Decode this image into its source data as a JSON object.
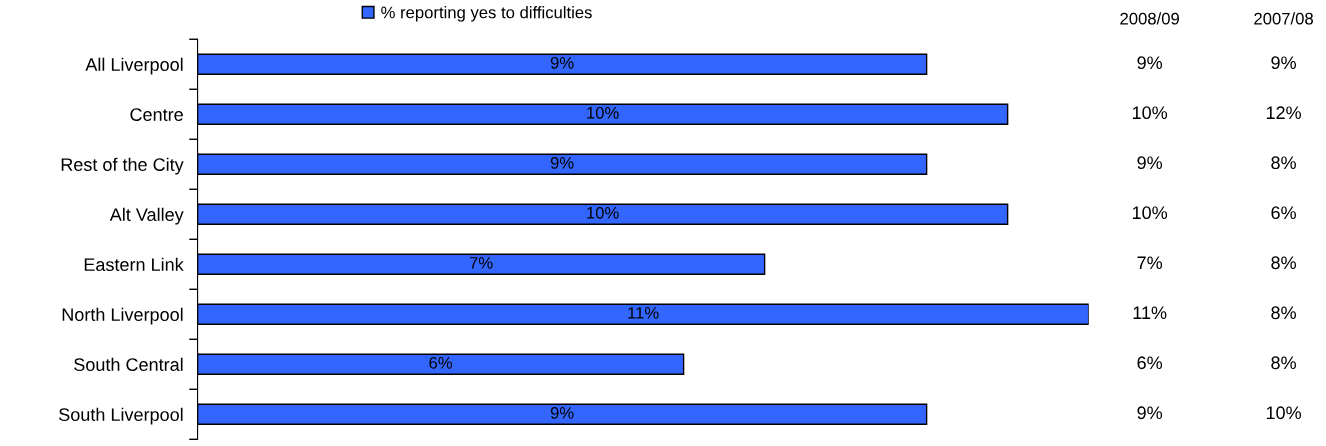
{
  "chart_data": {
    "type": "bar",
    "orientation": "horizontal",
    "categories": [
      "All Liverpool",
      "Centre",
      "Rest of the City",
      "Alt Valley",
      "Eastern Link",
      "North Liverpool",
      "South Central",
      "South Liverpool"
    ],
    "series": [
      {
        "name": "% reporting yes to difficulties",
        "color": "#3366ff",
        "values": [
          9,
          10,
          9,
          10,
          7,
          11,
          6,
          9
        ],
        "value_labels": [
          "9%",
          "10%",
          "9%",
          "10%",
          "7%",
          "11%",
          "6%",
          "9%"
        ]
      }
    ],
    "legend": "top",
    "grid": false,
    "tick_labels": "y",
    "annotations": [
      "2008/09",
      "2007/08",
      "9%",
      "9%",
      "10%",
      "12%",
      "9%",
      "8%",
      "10%",
      "6%",
      "7%",
      "8%",
      "11%",
      "8%",
      "6%",
      "8%",
      "9%",
      "10%"
    ]
  }
}
